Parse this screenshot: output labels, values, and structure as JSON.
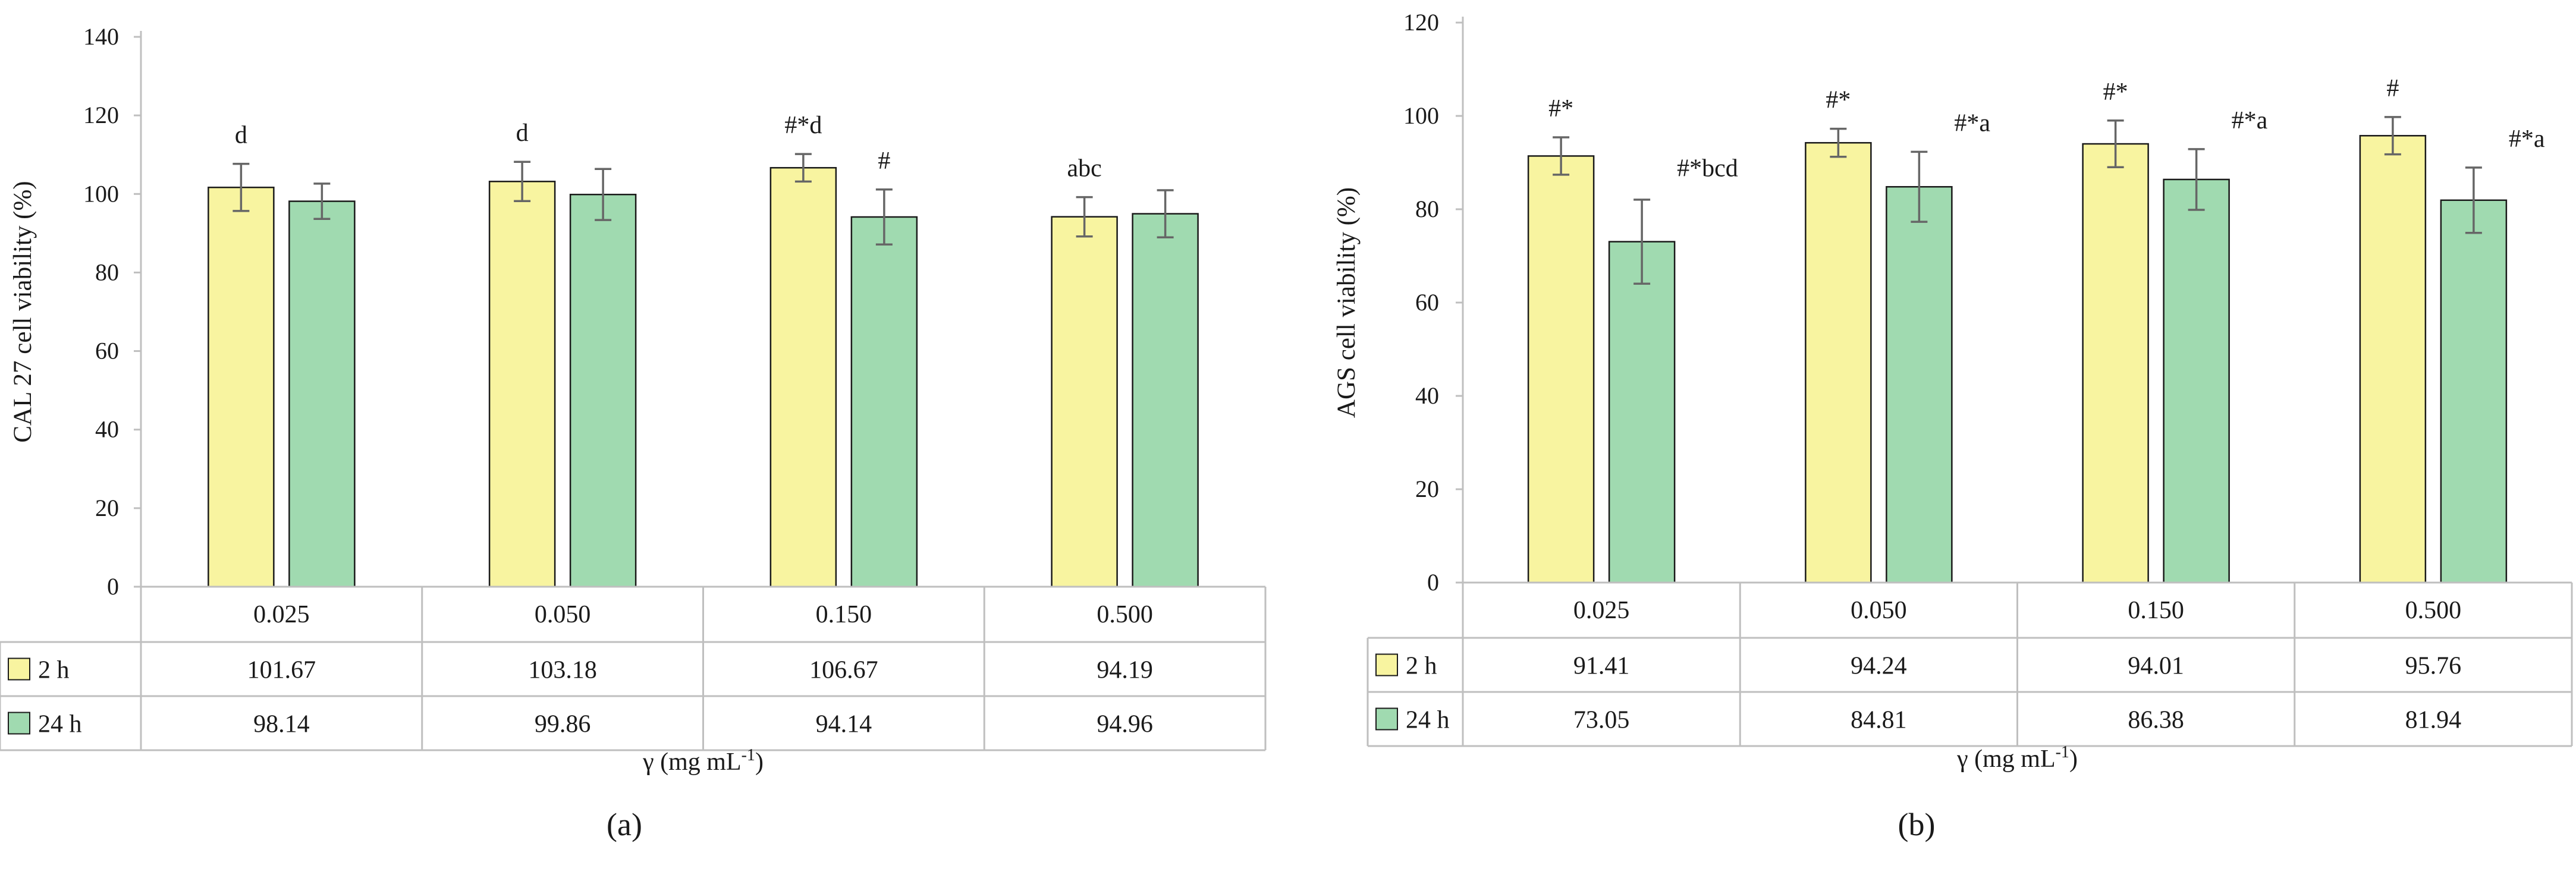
{
  "colors": {
    "series_2h": "#f8f4a0",
    "series_24h": "#a0dab0",
    "axis": "#bfbfbf",
    "error": "#666666",
    "bar_outline": "#1a1a1a"
  },
  "chart_data": [
    {
      "type": "bar",
      "panel_label": "(a)",
      "ylabel": "CAL 27 cell viability (%)",
      "xlabel": "γ  (mg mL",
      "xlabel_sup": "-1",
      "xlabel_close": ")",
      "ylim": [
        0,
        140
      ],
      "yticks": [
        0,
        20,
        40,
        60,
        80,
        100,
        120,
        140
      ],
      "categories": [
        "0.025",
        "0.050",
        "0.150",
        "0.500"
      ],
      "series": [
        {
          "name": "2 h",
          "values": [
            101.67,
            103.18,
            106.67,
            94.19
          ],
          "values_text": [
            "101.67",
            "103.18",
            "106.67",
            "94.19"
          ],
          "errors": [
            6,
            5,
            3.5,
            5
          ],
          "annotations": [
            "d",
            "d",
            "#*d",
            "abc"
          ]
        },
        {
          "name": "24 h",
          "values": [
            98.14,
            99.86,
            94.14,
            94.96
          ],
          "values_text": [
            "98.14",
            "99.86",
            "94.14",
            "94.96"
          ],
          "errors": [
            4.5,
            6.5,
            7,
            6
          ],
          "annotations": [
            "",
            "",
            "#",
            ""
          ]
        }
      ]
    },
    {
      "type": "bar",
      "panel_label": "(b)",
      "ylabel": "AGS cell viability (%)",
      "xlabel": "γ  (mg mL",
      "xlabel_sup": "-1",
      "xlabel_close": ")",
      "ylim": [
        0,
        120
      ],
      "yticks": [
        0,
        20,
        40,
        60,
        80,
        100,
        120
      ],
      "categories": [
        "0.025",
        "0.050",
        "0.150",
        "0.500"
      ],
      "series": [
        {
          "name": "2 h",
          "values": [
            91.41,
            94.24,
            94.01,
            95.76
          ],
          "values_text": [
            "91.41",
            "94.24",
            "94.01",
            "95.76"
          ],
          "errors": [
            4,
            3,
            5,
            4
          ],
          "annotations": [
            "#*",
            "#*",
            "#*",
            "#"
          ]
        },
        {
          "name": "24 h",
          "values": [
            73.05,
            84.81,
            86.38,
            81.94
          ],
          "values_text": [
            "73.05",
            "84.81",
            "86.38",
            "81.94"
          ],
          "errors": [
            9,
            7.5,
            6.5,
            7
          ],
          "annotations": [
            "#*bcd",
            "#*a",
            "#*a",
            "#*a"
          ]
        }
      ]
    }
  ]
}
